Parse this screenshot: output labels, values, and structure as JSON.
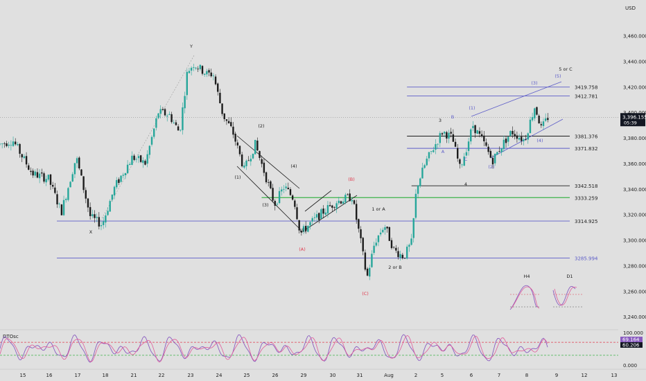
{
  "currency": "USD",
  "colors": {
    "background": "#e0e0e0",
    "up": "#26a69a",
    "down": "#1c1c1c",
    "level_blue": "#5c5cc8",
    "level_black": "#1c1c1c",
    "level_green": "#3db34a",
    "wave_red": "#e0384c",
    "osc_fast": "#8a5cc0",
    "osc_slow": "#e05a9a",
    "price_tag": "#131722"
  },
  "chart_data": {
    "type": "candlestick",
    "y_axis": {
      "ticks": [
        "3,460.000",
        "3,440.000",
        "3,420.000",
        "3,400.000",
        "3,380.000",
        "3,360.000",
        "3,340.000",
        "3,320.000",
        "3,300.000",
        "3,280.000",
        "3,260.000",
        "3,240.000"
      ],
      "tick_values": [
        3460,
        3440,
        3420,
        3400,
        3380,
        3360,
        3340,
        3320,
        3300,
        3280,
        3260,
        3240
      ],
      "range": [
        3232,
        3476
      ]
    },
    "x_axis": {
      "ticks": [
        "15",
        "16",
        "17",
        "18",
        "21",
        "22",
        "23",
        "24",
        "25",
        "26",
        "29",
        "30",
        "31",
        "Aug",
        "2",
        "5",
        "6",
        "7",
        "8",
        "9",
        "12",
        "13"
      ]
    },
    "last_price": {
      "value": "3,396.155",
      "countdown": "05:39"
    },
    "levels": [
      {
        "label": "3419.758",
        "value": 3419.758,
        "color": "level_blue",
        "x_start_frac": 0.63
      },
      {
        "label": "3412.781",
        "value": 3412.781,
        "color": "level_blue",
        "x_start_frac": 0.63
      },
      {
        "label": "3381.376",
        "value": 3381.376,
        "color": "level_black",
        "x_start_frac": 0.63
      },
      {
        "label": "3371.832",
        "value": 3371.832,
        "color": "level_blue",
        "x_start_frac": 0.63
      },
      {
        "label": "3342.518",
        "value": 3342.518,
        "color": "level_black",
        "x_start_frac": 0.637
      },
      {
        "label": "3333.259",
        "value": 3333.259,
        "color": "level_green",
        "x_start_frac": 0.405
      },
      {
        "label": "3314.925",
        "value": 3314.925,
        "color": "level_blue",
        "x_start_frac": 0.088
      },
      {
        "label": "3285.994",
        "value": 3285.994,
        "color": "level_blue",
        "x_start_frac": 0.088
      }
    ],
    "wave_labels": [
      {
        "text": "X",
        "color": "dark"
      },
      {
        "text": "Y",
        "color": "dark"
      },
      {
        "text": "(1)",
        "color": "dark"
      },
      {
        "text": "(2)",
        "color": "dark"
      },
      {
        "text": "(3)",
        "color": "dark"
      },
      {
        "text": "(4)",
        "color": "dark"
      },
      {
        "text": "(5)",
        "color": "dark"
      },
      {
        "text": "(A)",
        "color": "red"
      },
      {
        "text": "(B)",
        "color": "red"
      },
      {
        "text": "(C)",
        "color": "red"
      },
      {
        "text": "1 or A",
        "color": "dark"
      },
      {
        "text": "2 or B",
        "color": "dark"
      },
      {
        "text": "3",
        "color": "dark"
      },
      {
        "text": "4",
        "color": "dark"
      },
      {
        "text": "A",
        "color": "blue"
      },
      {
        "text": "B",
        "color": "blue"
      },
      {
        "text": "C",
        "color": "blue"
      },
      {
        "text": "(1)",
        "color": "blue"
      },
      {
        "text": "(2)",
        "color": "blue"
      },
      {
        "text": "(3)",
        "color": "blue"
      },
      {
        "text": "(4)",
        "color": "blue"
      },
      {
        "text": "(5)",
        "color": "blue"
      },
      {
        "text": "5 or C",
        "color": "dark"
      }
    ],
    "mini_panels": [
      {
        "label": "H4"
      },
      {
        "label": "D1"
      }
    ],
    "oscillator": {
      "name": "DTOsc",
      "ticks": [
        "100.000",
        "0.000"
      ],
      "levels": [
        {
          "value": 70,
          "color": "wave_red"
        },
        {
          "value": 30,
          "color": "level_green"
        }
      ],
      "values": [
        {
          "label": "69.164",
          "value": 69.164,
          "color": "osc_fast"
        },
        {
          "label": "60.206",
          "value": 60.206,
          "color": "price_tag"
        }
      ]
    },
    "anchors": [
      {
        "x": 0.0,
        "y": 3375
      },
      {
        "x": 0.02,
        "y": 3378
      },
      {
        "x": 0.05,
        "y": 3352
      },
      {
        "x": 0.075,
        "y": 3348
      },
      {
        "x": 0.095,
        "y": 3322
      },
      {
        "x": 0.118,
        "y": 3365
      },
      {
        "x": 0.14,
        "y": 3318
      },
      {
        "x": 0.158,
        "y": 3312
      },
      {
        "x": 0.178,
        "y": 3342
      },
      {
        "x": 0.205,
        "y": 3365
      },
      {
        "x": 0.225,
        "y": 3360
      },
      {
        "x": 0.245,
        "y": 3400
      },
      {
        "x": 0.262,
        "y": 3398
      },
      {
        "x": 0.278,
        "y": 3384
      },
      {
        "x": 0.29,
        "y": 3432
      },
      {
        "x": 0.3,
        "y": 3438
      },
      {
        "x": 0.32,
        "y": 3430
      },
      {
        "x": 0.33,
        "y": 3430
      },
      {
        "x": 0.345,
        "y": 3398
      },
      {
        "x": 0.36,
        "y": 3385
      },
      {
        "x": 0.378,
        "y": 3355
      },
      {
        "x": 0.395,
        "y": 3375
      },
      {
        "x": 0.41,
        "y": 3352
      },
      {
        "x": 0.425,
        "y": 3328
      },
      {
        "x": 0.44,
        "y": 3342
      },
      {
        "x": 0.455,
        "y": 3332
      },
      {
        "x": 0.465,
        "y": 3305
      },
      {
        "x": 0.478,
        "y": 3312
      },
      {
        "x": 0.5,
        "y": 3322
      },
      {
        "x": 0.52,
        "y": 3330
      },
      {
        "x": 0.545,
        "y": 3334
      },
      {
        "x": 0.558,
        "y": 3300
      },
      {
        "x": 0.568,
        "y": 3270
      },
      {
        "x": 0.58,
        "y": 3298
      },
      {
        "x": 0.595,
        "y": 3312
      },
      {
        "x": 0.61,
        "y": 3292
      },
      {
        "x": 0.625,
        "y": 3287
      },
      {
        "x": 0.637,
        "y": 3298
      },
      {
        "x": 0.645,
        "y": 3342
      },
      {
        "x": 0.66,
        "y": 3362
      },
      {
        "x": 0.685,
        "y": 3385
      },
      {
        "x": 0.7,
        "y": 3380
      },
      {
        "x": 0.712,
        "y": 3356
      },
      {
        "x": 0.722,
        "y": 3372
      },
      {
        "x": 0.732,
        "y": 3390
      },
      {
        "x": 0.75,
        "y": 3375
      },
      {
        "x": 0.762,
        "y": 3362
      },
      {
        "x": 0.778,
        "y": 3375
      },
      {
        "x": 0.792,
        "y": 3385
      },
      {
        "x": 0.812,
        "y": 3378
      },
      {
        "x": 0.828,
        "y": 3405
      },
      {
        "x": 0.838,
        "y": 3387
      },
      {
        "x": 0.848,
        "y": 3396
      }
    ]
  }
}
